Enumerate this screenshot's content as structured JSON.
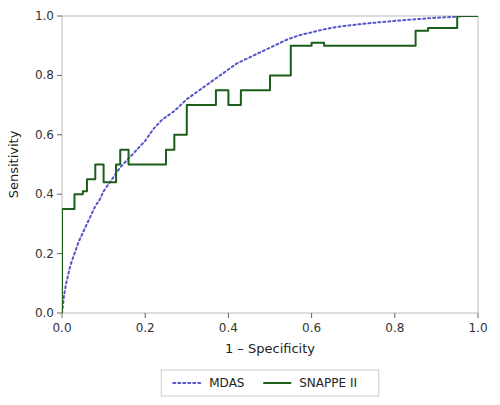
{
  "chart_data": {
    "type": "line",
    "xlabel": "1 – Specificity",
    "ylabel": "Sensitivity",
    "xlim": [
      0.0,
      1.0
    ],
    "ylim": [
      0.0,
      1.0
    ],
    "xticks": [
      {
        "value": 0.0,
        "label": "0.0"
      },
      0.2,
      0.4,
      0.6,
      0.8,
      {
        "value": 1.0,
        "label": "1.0"
      }
    ],
    "yticks": [
      {
        "value": 0.0,
        "label": "0.0"
      },
      0.2,
      0.4,
      0.6,
      0.8,
      {
        "value": 1.0,
        "label": "1.0"
      }
    ],
    "grid": false,
    "legend": "bottom",
    "series": [
      {
        "name": "MDAS",
        "color": "#5555cc",
        "line_style": "dotted",
        "x": [
          0.0,
          0.005,
          0.01,
          0.015,
          0.02,
          0.03,
          0.04,
          0.05,
          0.06,
          0.07,
          0.08,
          0.09,
          0.1,
          0.11,
          0.12,
          0.13,
          0.14,
          0.16,
          0.18,
          0.2,
          0.22,
          0.24,
          0.27,
          0.3,
          0.33,
          0.36,
          0.39,
          0.42,
          0.45,
          0.48,
          0.51,
          0.54,
          0.57,
          0.6,
          0.63,
          0.66,
          0.7,
          0.74,
          0.78,
          0.82,
          0.86,
          0.9,
          0.94,
          0.97,
          1.0
        ],
        "values": [
          0.0,
          0.06,
          0.1,
          0.13,
          0.16,
          0.2,
          0.24,
          0.27,
          0.3,
          0.33,
          0.36,
          0.38,
          0.41,
          0.43,
          0.45,
          0.47,
          0.49,
          0.52,
          0.55,
          0.58,
          0.62,
          0.65,
          0.68,
          0.72,
          0.75,
          0.78,
          0.81,
          0.84,
          0.86,
          0.88,
          0.9,
          0.92,
          0.935,
          0.945,
          0.955,
          0.963,
          0.97,
          0.976,
          0.981,
          0.986,
          0.99,
          0.994,
          0.997,
          1.0,
          1.0
        ]
      },
      {
        "name": "SNAPPE II",
        "color": "#1a5e1a",
        "line_style": "solid",
        "x": [
          0.0,
          0.0,
          0.03,
          0.03,
          0.05,
          0.05,
          0.06,
          0.06,
          0.08,
          0.08,
          0.1,
          0.1,
          0.13,
          0.13,
          0.14,
          0.14,
          0.16,
          0.16,
          0.25,
          0.25,
          0.27,
          0.27,
          0.3,
          0.3,
          0.37,
          0.37,
          0.4,
          0.4,
          0.43,
          0.43,
          0.5,
          0.5,
          0.55,
          0.55,
          0.6,
          0.6,
          0.63,
          0.63,
          0.85,
          0.85,
          0.88,
          0.88,
          0.95,
          0.95,
          1.0,
          1.0
        ],
        "values": [
          0.0,
          0.35,
          0.35,
          0.4,
          0.4,
          0.41,
          0.41,
          0.45,
          0.45,
          0.5,
          0.5,
          0.44,
          0.44,
          0.5,
          0.5,
          0.55,
          0.55,
          0.5,
          0.5,
          0.55,
          0.55,
          0.6,
          0.6,
          0.7,
          0.7,
          0.75,
          0.75,
          0.7,
          0.7,
          0.75,
          0.75,
          0.8,
          0.8,
          0.9,
          0.9,
          0.91,
          0.91,
          0.9,
          0.9,
          0.95,
          0.95,
          0.96,
          0.96,
          1.0,
          1.0,
          1.0
        ]
      }
    ]
  }
}
